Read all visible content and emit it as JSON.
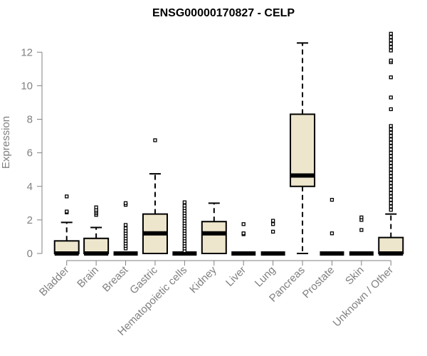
{
  "chart_data": {
    "type": "boxplot",
    "title": "ENSG00000170827 - CELP",
    "xlabel": "",
    "ylabel": "Expression",
    "ylim": [
      0,
      13.2
    ],
    "yticks": [
      0,
      2,
      4,
      6,
      8,
      10,
      12
    ],
    "categories": [
      "Bladder",
      "Brain",
      "Breast",
      "Gastric",
      "Hematopoietic cells",
      "Kidney",
      "Liver",
      "Lung",
      "Pancreas",
      "Prostate",
      "Skin",
      "Unknown / Other"
    ],
    "boxes": [
      {
        "min": 0,
        "q1": 0,
        "median": 0,
        "q3": 0.75,
        "max": 1.85,
        "outliers": [
          2.45,
          2.5,
          3.4
        ]
      },
      {
        "min": 0,
        "q1": 0,
        "median": 0,
        "q3": 0.9,
        "max": 1.55,
        "outliers": [
          2.3,
          2.4,
          2.5,
          2.6,
          2.75
        ]
      },
      {
        "min": 0,
        "q1": 0,
        "median": 0,
        "q3": 0,
        "max": 0,
        "outliers": [
          0.3,
          0.45,
          0.6,
          0.75,
          0.9,
          1.05,
          1.2,
          1.35,
          1.5,
          1.7,
          2.9,
          3.0
        ]
      },
      {
        "min": 0,
        "q1": 0,
        "median": 1.2,
        "q3": 2.35,
        "max": 4.75,
        "outliers": [
          6.75
        ]
      },
      {
        "min": 0,
        "q1": 0,
        "median": 0,
        "q3": 0,
        "max": 0,
        "outliers": [
          0.15,
          0.3,
          0.45,
          0.6,
          0.75,
          0.9,
          1.05,
          1.2,
          1.35,
          1.5,
          1.65,
          1.8,
          1.95,
          2.1,
          2.25,
          2.4,
          2.55,
          2.7,
          2.85,
          3.05
        ]
      },
      {
        "min": 0,
        "q1": 0,
        "median": 1.2,
        "q3": 1.9,
        "max": 3.0,
        "outliers": []
      },
      {
        "min": 0,
        "q1": 0,
        "median": 0,
        "q3": 0,
        "max": 0,
        "outliers": [
          1.15,
          1.2,
          1.75
        ]
      },
      {
        "min": 0,
        "q1": 0,
        "median": 0,
        "q3": 0,
        "max": 0,
        "outliers": [
          1.3,
          1.75,
          1.95
        ]
      },
      {
        "min": 0,
        "q1": 4.0,
        "median": 4.65,
        "q3": 8.3,
        "max": 12.55,
        "outliers": []
      },
      {
        "min": 0,
        "q1": 0,
        "median": 0,
        "q3": 0,
        "max": 0,
        "outliers": [
          1.2,
          3.2
        ]
      },
      {
        "min": 0,
        "q1": 0,
        "median": 0,
        "q3": 0,
        "max": 0,
        "outliers": [
          1.4,
          2.0,
          2.15
        ]
      },
      {
        "min": 0,
        "q1": 0,
        "median": 0,
        "q3": 0.95,
        "max": 2.35,
        "outliers": [
          2.6,
          2.8,
          3.0,
          3.2,
          3.4,
          3.6,
          3.8,
          4.0,
          4.2,
          4.4,
          4.6,
          4.8,
          5.0,
          5.2,
          5.4,
          5.6,
          5.8,
          6.0,
          6.2,
          6.4,
          6.6,
          6.8,
          7.0,
          7.2,
          7.4,
          7.6,
          8.6,
          9.3,
          10.5,
          11.4,
          11.5,
          12.1,
          12.3,
          12.5,
          12.7,
          12.9,
          13.1
        ]
      }
    ],
    "colors": {
      "box_fill": "#ede6cc",
      "box_stroke": "#000000",
      "axis": "#808080",
      "label": "#808080"
    },
    "grid": false,
    "legend": "none"
  }
}
